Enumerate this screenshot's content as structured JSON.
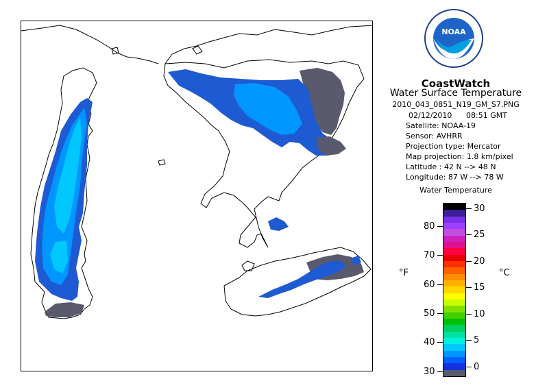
{
  "branding": {
    "logo_text": "NOAA"
  },
  "product": {
    "name": "CoastWatch",
    "title": "Water Surface Temperature",
    "filename": "2010_043_0851_N19_GM_S7.PNG",
    "date": "02/12/2010",
    "time": "08:51 GMT",
    "satellite": "Satellite: NOAA-19",
    "sensor": "Sensor: AVHRR",
    "projection_type": "Projection type:  Mercator",
    "map_projection": "Map projection: 1.8 km/pixel",
    "latitude": "Latitude : 42 N --> 48 N",
    "longitude": "Longitude: 87 W --> 78 W"
  },
  "legend": {
    "title": "Water Temperature",
    "unit_f": "°F",
    "unit_c": "°C",
    "f_ticks": [
      "80",
      "70",
      "60",
      "50",
      "40",
      "30"
    ],
    "c_ticks": [
      "30",
      "25",
      "20",
      "15",
      "10",
      "5",
      "0"
    ],
    "colors": [
      "#000000",
      "#3c1e96",
      "#7830e6",
      "#a040ff",
      "#c050e0",
      "#d020c0",
      "#e01090",
      "#ff0040",
      "#e80000",
      "#ff3000",
      "#ff6000",
      "#ff8c00",
      "#ffb000",
      "#ffd800",
      "#ffff00",
      "#c8ff00",
      "#80e000",
      "#40d000",
      "#00c000",
      "#00d060",
      "#00e0a0",
      "#00f0e0",
      "#00c8ff",
      "#0096ff",
      "#0060ff",
      "#1432e0",
      "#5a5a6e"
    ]
  },
  "colors": {
    "land_fill": "#ffffff",
    "coastline": "#000000",
    "cloud": "#5a5a6e",
    "water_deep": "#1e5ad2",
    "water_mid": "#0096ff",
    "water_warm": "#00c8ff"
  }
}
